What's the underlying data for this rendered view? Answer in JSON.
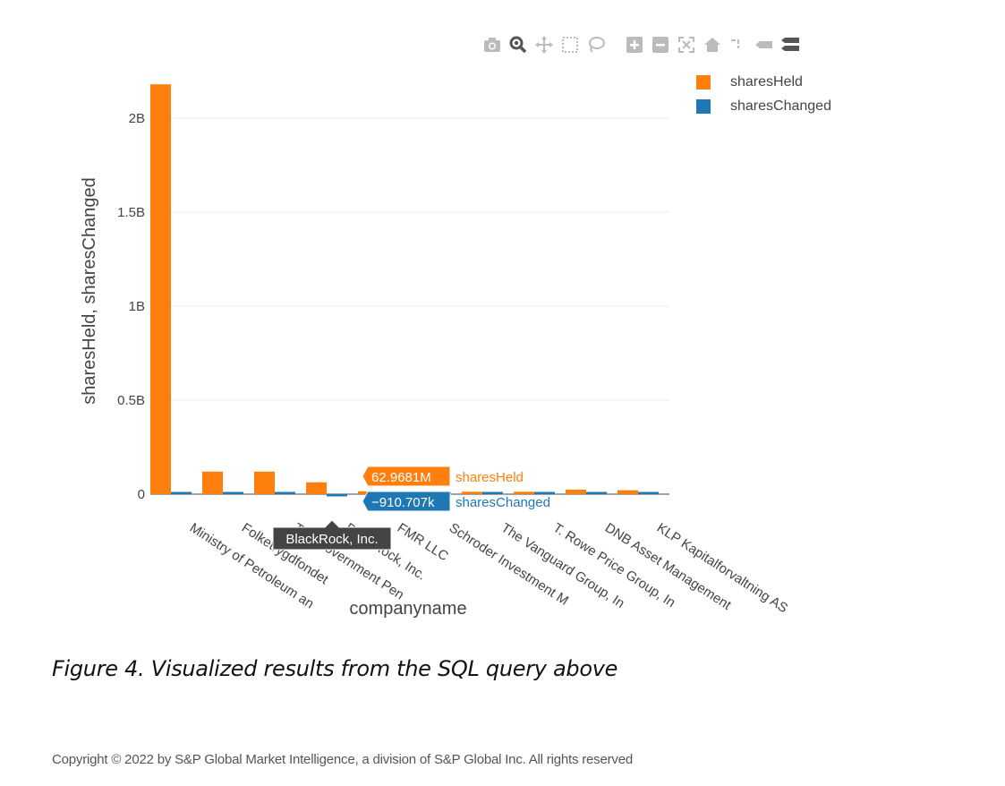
{
  "chart_data": {
    "type": "bar",
    "xlabel": "companyname",
    "ylabel": "sharesHeld, sharesChanged",
    "ylim": [
      0,
      2200000000
    ],
    "yticks": [
      {
        "value": 0,
        "label": "0"
      },
      {
        "value": 500000000,
        "label": "0.5B"
      },
      {
        "value": 1000000000,
        "label": "1B"
      },
      {
        "value": 1500000000,
        "label": "1.5B"
      },
      {
        "value": 2000000000,
        "label": "2B"
      }
    ],
    "grid": true,
    "legend_position": "top-right",
    "categories": [
      "Ministry of Petroleum an",
      "Folketrygdfondet",
      "The Government Pen",
      "BlackRock, Inc.",
      "FMR LLC",
      "Schroder Investment M",
      "The Vanguard Group, In",
      "T. Rowe Price Group, In",
      "DNB Asset Management",
      "KLP Kapitalforvaltning AS"
    ],
    "series": [
      {
        "name": "sharesHeld",
        "color": "#ff7f0e",
        "values": [
          2180000000,
          120000000,
          120000000,
          62968100,
          15000000,
          14000000,
          13000000,
          13000000,
          24000000,
          21000000
        ]
      },
      {
        "name": "sharesChanged",
        "color": "#1f77b4",
        "values": [
          2000000,
          8000000,
          8000000,
          -910707,
          1000000,
          1000000,
          1000000,
          1000000,
          3000000,
          2000000
        ]
      }
    ],
    "hover": {
      "category": "BlackRock, Inc.",
      "labels": [
        {
          "value": "62.9681M",
          "series": "sharesHeld"
        },
        {
          "value": "−910.707k",
          "series": "sharesChanged"
        }
      ]
    }
  },
  "modebar": {
    "buttons": [
      "camera-icon",
      "zoom-icon",
      "pan-icon",
      "box-select-icon",
      "lasso-select-icon",
      "zoom-in-icon",
      "zoom-out-icon",
      "autoscale-icon",
      "reset-axes-icon",
      "spike-lines-icon",
      "hover-closest-icon",
      "hover-compare-icon"
    ]
  },
  "caption": "Figure 4. Visualized results from the SQL query above",
  "footer": "Copyright © 2022 by S&P Global Market Intelligence, a division of S&P Global Inc. All rights reserved"
}
